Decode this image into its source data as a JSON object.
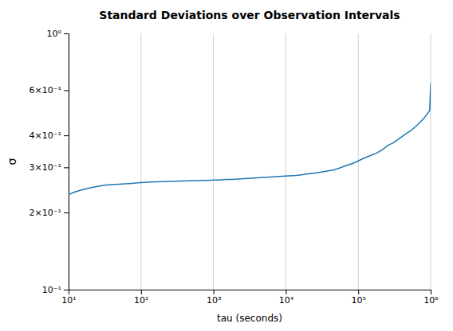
{
  "chart_data": {
    "type": "line",
    "title": "Standard Deviations over Observation Intervals",
    "xlabel": "tau (seconds)",
    "ylabel": "σ",
    "log": true,
    "grid": "x",
    "color": "#1f77b4",
    "xlim": [
      10,
      1000000
    ],
    "ylim": [
      0.1,
      1.0
    ],
    "xticks": [
      {
        "value": 10,
        "label": "10¹"
      },
      {
        "value": 100,
        "label": "10²"
      },
      {
        "value": 1000,
        "label": "10³"
      },
      {
        "value": 10000,
        "label": "10⁴"
      },
      {
        "value": 100000,
        "label": "10⁵"
      },
      {
        "value": 1000000,
        "label": "10⁶"
      }
    ],
    "yticks": [
      {
        "value": 0.1,
        "label": "10⁻¹"
      },
      {
        "value": 0.2,
        "label": "2×10⁻¹"
      },
      {
        "value": 0.3,
        "label": "3×10⁻¹"
      },
      {
        "value": 0.4,
        "label": "4×10⁻¹"
      },
      {
        "value": 0.6,
        "label": "6×10⁻¹"
      },
      {
        "value": 1.0,
        "label": "10⁰"
      }
    ],
    "x": [
      10,
      12,
      15,
      18,
      22,
      27,
      33,
      40,
      50,
      60,
      75,
      90,
      110,
      135,
      165,
      200,
      250,
      300,
      370,
      450,
      550,
      680,
      820,
      1000,
      1200,
      1500,
      1800,
      2200,
      2700,
      3300,
      4000,
      5000,
      6000,
      7500,
      9000,
      11000,
      14000,
      17000,
      20000,
      25000,
      30000,
      37000,
      45000,
      55000,
      68000,
      82000,
      100000,
      120000,
      145000,
      175000,
      210000,
      255000,
      310000,
      375000,
      450000,
      545000,
      660000,
      800000,
      970000,
      1000000
    ],
    "values": [
      0.235,
      0.24,
      0.245,
      0.248,
      0.251,
      0.254,
      0.256,
      0.257,
      0.258,
      0.259,
      0.26,
      0.261,
      0.262,
      0.263,
      0.2635,
      0.264,
      0.2645,
      0.265,
      0.2655,
      0.266,
      0.2665,
      0.267,
      0.267,
      0.268,
      0.268,
      0.269,
      0.269,
      0.27,
      0.271,
      0.272,
      0.273,
      0.274,
      0.275,
      0.276,
      0.277,
      0.278,
      0.279,
      0.281,
      0.283,
      0.285,
      0.287,
      0.29,
      0.293,
      0.298,
      0.305,
      0.31,
      0.318,
      0.326,
      0.333,
      0.34,
      0.35,
      0.365,
      0.375,
      0.39,
      0.405,
      0.42,
      0.44,
      0.465,
      0.5,
      0.64
    ]
  }
}
